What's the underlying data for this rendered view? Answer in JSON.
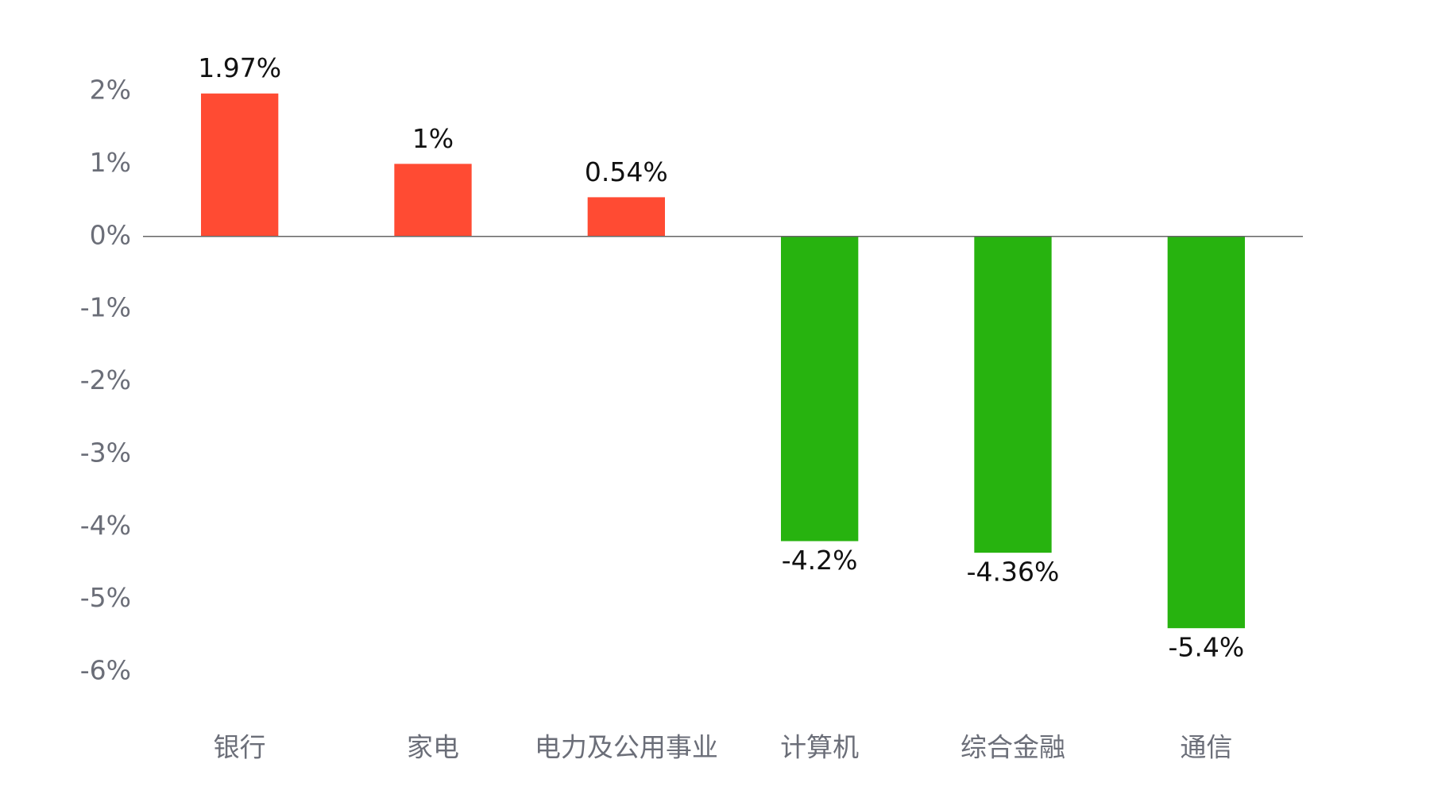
{
  "chart_data": {
    "type": "bar",
    "categories": [
      "银行",
      "家电",
      "电力及公用事业",
      "计算机",
      "综合金融",
      "通信"
    ],
    "values": [
      1.97,
      1,
      0.54,
      -4.2,
      -4.36,
      -5.4
    ],
    "value_labels": [
      "1.97%",
      "1%",
      "0.54%",
      "-4.2%",
      "-4.36%",
      "-5.4%"
    ],
    "colors": [
      "#ff4b33",
      "#ff4b33",
      "#ff4b33",
      "#27b30f",
      "#27b30f",
      "#27b30f"
    ],
    "ylim": [
      -6,
      2
    ],
    "yticks": [
      {
        "value": 2,
        "label": "2%"
      },
      {
        "value": 1,
        "label": "1%"
      },
      {
        "value": 0,
        "label": "0%"
      },
      {
        "value": -1,
        "label": "-1%"
      },
      {
        "value": -2,
        "label": "-2%"
      },
      {
        "value": -3,
        "label": "-3%"
      },
      {
        "value": -4,
        "label": "-4%"
      },
      {
        "value": -5,
        "label": "-5%"
      },
      {
        "value": -6,
        "label": "-6%"
      }
    ],
    "grid": false
  }
}
